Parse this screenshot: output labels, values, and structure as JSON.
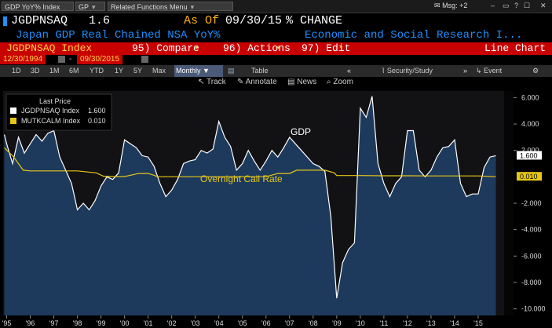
{
  "command_bar": {
    "security": "GDP YoY% Index",
    "function": "GP",
    "related": "Related Functions Menu",
    "msg": "Msg: +2"
  },
  "header": {
    "ticker": "JGDPNSAQ",
    "value": "1.6",
    "as_of_label": "As Of",
    "as_of_date": "09/30/15",
    "change_label": "% CHANGE",
    "description": "Japan GDP Real Chained NSA YoY%",
    "source": "Economic and Social Research I...",
    "index_name": "JGDPNSAQ Index",
    "compare": "95) Compare",
    "actions": "96) Actions",
    "edit": "97) Edit",
    "chart_type": "Line Chart",
    "start_date": "12/30/1994",
    "end_date": "09/30/2015"
  },
  "ranges": [
    "1D",
    "3D",
    "1M",
    "6M",
    "YTD",
    "1Y",
    "5Y",
    "Max"
  ],
  "frequency": "Monthly",
  "table_label": "Table",
  "security_study": "Security/Study",
  "event": "Event",
  "tools": {
    "track": "Track",
    "annotate": "Annotate",
    "news": "News",
    "zoom": "Zoom"
  },
  "colors": {
    "gdp": "#ffffff",
    "gdp_fill": "#1d3a5c",
    "rate": "#e6c619",
    "header_red": "#c80000",
    "blue_text": "#1e90ff"
  },
  "chart_data": {
    "type": "area",
    "legend_title": "Last Price",
    "annotations": [
      "GDP",
      "Overnight Call Rate"
    ],
    "ylim": [
      -10.5,
      6.5
    ],
    "y_ticks": [
      "6.000",
      "4.000",
      "2.000",
      "-2.000",
      "-4.000",
      "-6.000",
      "-8.000",
      "-10.000"
    ],
    "x_ticks": [
      "'95",
      "'96",
      "'97",
      "'98",
      "'99",
      "'00",
      "'01",
      "'02",
      "'03",
      "'04",
      "'05",
      "'06",
      "'07",
      "'08",
      "'09",
      "'10",
      "'11",
      "'12",
      "'13",
      "'14",
      "'15"
    ],
    "series": [
      {
        "name": "JGDPNSAQ Index",
        "last": "1.600",
        "x": [
          1994.9,
          1995.0,
          1995.25,
          1995.5,
          1995.75,
          1996.0,
          1996.25,
          1996.5,
          1996.75,
          1997.0,
          1997.25,
          1997.5,
          1997.75,
          1998.0,
          1998.25,
          1998.5,
          1998.75,
          1999.0,
          1999.25,
          1999.5,
          1999.75,
          2000.0,
          2000.25,
          2000.5,
          2000.75,
          2001.0,
          2001.25,
          2001.5,
          2001.75,
          2002.0,
          2002.25,
          2002.5,
          2002.75,
          2003.0,
          2003.25,
          2003.5,
          2003.75,
          2004.0,
          2004.25,
          2004.5,
          2004.75,
          2005.0,
          2005.25,
          2005.5,
          2005.75,
          2006.0,
          2006.25,
          2006.5,
          2006.75,
          2007.0,
          2007.25,
          2007.5,
          2007.75,
          2008.0,
          2008.25,
          2008.5,
          2008.75,
          2009.0,
          2009.25,
          2009.5,
          2009.75,
          2010.0,
          2010.25,
          2010.5,
          2010.75,
          2011.0,
          2011.25,
          2011.5,
          2011.75,
          2012.0,
          2012.25,
          2012.5,
          2012.75,
          2013.0,
          2013.25,
          2013.5,
          2013.75,
          2014.0,
          2014.25,
          2014.5,
          2014.75,
          2015.0,
          2015.25,
          2015.5,
          2015.75
        ],
        "values": [
          3.2,
          2.5,
          1.0,
          3.0,
          1.8,
          2.5,
          3.2,
          2.7,
          3.3,
          3.5,
          1.5,
          0.5,
          -0.5,
          -2.5,
          -2.0,
          -2.5,
          -1.8,
          -0.7,
          0.0,
          -0.2,
          0.3,
          2.8,
          2.5,
          2.2,
          1.6,
          1.5,
          0.8,
          -0.5,
          -1.5,
          -1.0,
          -0.2,
          1.0,
          1.2,
          1.3,
          2.0,
          1.8,
          2.1,
          4.2,
          3.0,
          2.3,
          0.5,
          1.0,
          2.0,
          1.2,
          0.5,
          1.2,
          2.0,
          1.5,
          2.2,
          3.0,
          2.5,
          2.0,
          1.5,
          1.0,
          0.8,
          0.4,
          -3.0,
          -9.2,
          -6.5,
          -5.5,
          -5.0,
          5.2,
          4.5,
          6.1,
          1.0,
          -0.5,
          -1.5,
          -0.5,
          0.0,
          3.5,
          3.5,
          0.5,
          0.0,
          0.5,
          1.5,
          2.2,
          2.3,
          2.8,
          -0.5,
          -1.5,
          -1.3,
          -1.3,
          0.7,
          1.5,
          1.6
        ]
      },
      {
        "name": "MUTKCALM Index",
        "last": "0.010",
        "x": [
          1994.9,
          1995.3,
          1995.5,
          1995.7,
          1996.0,
          1997.0,
          1998.0,
          1998.8,
          1999.1,
          1999.5,
          2000.0,
          2000.6,
          2001.0,
          2001.2,
          2001.4,
          2002.0,
          2004.0,
          2006.0,
          2006.5,
          2007.0,
          2007.3,
          2008.0,
          2008.5,
          2008.9,
          2009.0,
          2010.0,
          2011.0,
          2012.0,
          2013.0,
          2014.0,
          2015.0,
          2015.75
        ],
        "values": [
          2.2,
          1.5,
          1.0,
          0.5,
          0.45,
          0.45,
          0.45,
          0.3,
          0.05,
          0.02,
          0.02,
          0.25,
          0.25,
          0.15,
          0.01,
          0.01,
          0.01,
          0.01,
          0.25,
          0.25,
          0.5,
          0.5,
          0.5,
          0.3,
          0.1,
          0.1,
          0.08,
          0.08,
          0.07,
          0.07,
          0.07,
          0.01
        ]
      }
    ]
  }
}
